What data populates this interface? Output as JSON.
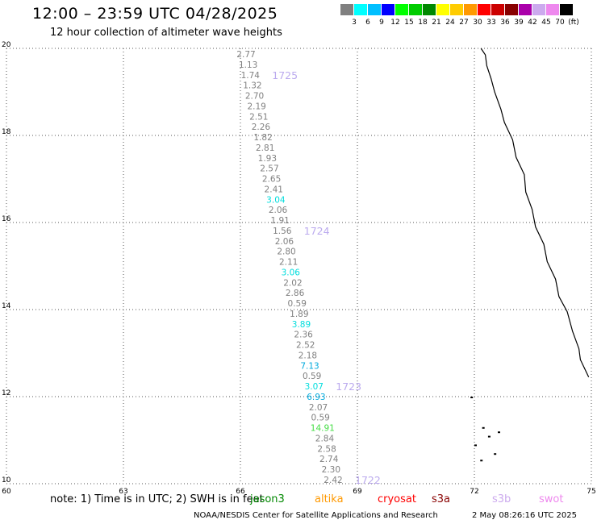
{
  "header": {
    "title": "12:00 – 23:59 UTC 04/28/2025",
    "subtitle": "12 hour collection of altimeter wave heights"
  },
  "scale": {
    "colors": [
      "#808080",
      "#00ffff",
      "#00bfff",
      "#0000ff",
      "#00ff00",
      "#00cc00",
      "#008800",
      "#ffff00",
      "#ffcc00",
      "#ff9900",
      "#ff0000",
      "#cc0000",
      "#880000",
      "#aa00aa",
      "#ccaaee",
      "#ee88ee",
      "#000000"
    ],
    "labels": [
      "3",
      "6",
      "9",
      "12",
      "15",
      "18",
      "21",
      "24",
      "27",
      "30",
      "33",
      "36",
      "39",
      "42",
      "45",
      "70",
      "(ft)"
    ]
  },
  "map": {
    "lon_ticks": [
      "60",
      "63",
      "66",
      "69",
      "72",
      "75"
    ],
    "lat_ticks": [
      "10",
      "12",
      "14",
      "16",
      "18",
      "20"
    ],
    "lon_range": [
      60,
      75
    ],
    "lat_range": [
      10,
      20
    ],
    "coastline_color": "#000000",
    "track_points": [
      {
        "v": "2.77",
        "c": "#808080"
      },
      {
        "v": "1.13",
        "c": "#808080"
      },
      {
        "v": "1.74",
        "c": "#808080"
      },
      {
        "v": "1.32",
        "c": "#808080"
      },
      {
        "v": "2.70",
        "c": "#808080"
      },
      {
        "v": "2.19",
        "c": "#808080"
      },
      {
        "v": "2.51",
        "c": "#808080"
      },
      {
        "v": "2.26",
        "c": "#808080"
      },
      {
        "v": "1.82",
        "c": "#808080"
      },
      {
        "v": "2.81",
        "c": "#808080"
      },
      {
        "v": "1.93",
        "c": "#808080"
      },
      {
        "v": "2.57",
        "c": "#808080"
      },
      {
        "v": "2.65",
        "c": "#808080"
      },
      {
        "v": "2.41",
        "c": "#808080"
      },
      {
        "v": "3.04",
        "c": "#00dddd"
      },
      {
        "v": "2.06",
        "c": "#808080"
      },
      {
        "v": "1.91",
        "c": "#808080"
      },
      {
        "v": "1.56",
        "c": "#808080"
      },
      {
        "v": "2.06",
        "c": "#808080"
      },
      {
        "v": "2.80",
        "c": "#808080"
      },
      {
        "v": "2.11",
        "c": "#808080"
      },
      {
        "v": "3.06",
        "c": "#00dddd"
      },
      {
        "v": "2.02",
        "c": "#808080"
      },
      {
        "v": "2.86",
        "c": "#808080"
      },
      {
        "v": "0.59",
        "c": "#808080"
      },
      {
        "v": "1.89",
        "c": "#808080"
      },
      {
        "v": "3.89",
        "c": "#00dddd"
      },
      {
        "v": "2.36",
        "c": "#808080"
      },
      {
        "v": "2.52",
        "c": "#808080"
      },
      {
        "v": "2.18",
        "c": "#808080"
      },
      {
        "v": "7.13",
        "c": "#00aadd"
      },
      {
        "v": "0.59",
        "c": "#808080"
      },
      {
        "v": "3.07",
        "c": "#00dddd"
      },
      {
        "v": "6.93",
        "c": "#00aadd"
      },
      {
        "v": "2.07",
        "c": "#808080"
      },
      {
        "v": "0.59",
        "c": "#808080"
      },
      {
        "v": "14.91",
        "c": "#44dd44"
      },
      {
        "v": "2.84",
        "c": "#808080"
      },
      {
        "v": "2.58",
        "c": "#808080"
      },
      {
        "v": "2.74",
        "c": "#808080"
      },
      {
        "v": "2.30",
        "c": "#808080"
      },
      {
        "v": "2.42",
        "c": "#808080"
      }
    ],
    "time_labels": [
      {
        "t": "1725",
        "index": 2
      },
      {
        "t": "1724",
        "index": 17
      },
      {
        "t": "1723",
        "index": 32
      },
      {
        "t": "1722",
        "index": 41
      }
    ]
  },
  "note": {
    "text": "note:  1) Time is in UTC; 2) SWH is in feet",
    "satellites": [
      {
        "name": "jason3",
        "color": "#008800"
      },
      {
        "name": "altika",
        "color": "#ff9900"
      },
      {
        "name": "cryosat",
        "color": "#ff0000"
      },
      {
        "name": "s3a",
        "color": "#880000"
      },
      {
        "name": "s3b",
        "color": "#ccaaee"
      },
      {
        "name": "swot",
        "color": "#ee88ee"
      }
    ]
  },
  "footer": {
    "agency": "NOAA/NESDIS Center for Satellite Applications and Research",
    "timestamp": "2 May 08:26:16 UTC 2025"
  }
}
